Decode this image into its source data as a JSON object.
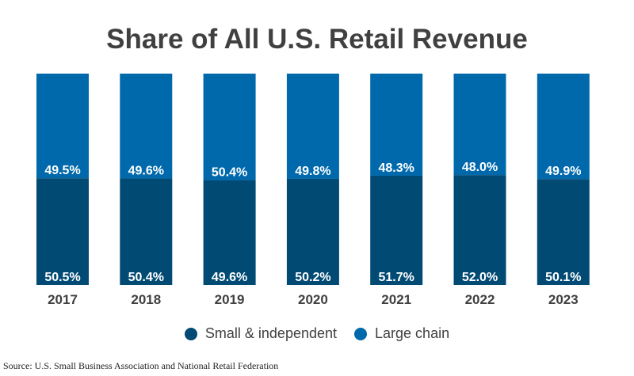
{
  "chart_data": {
    "type": "bar",
    "stacked": true,
    "title": "Share of All U.S. Retail Revenue",
    "categories": [
      "2017",
      "2018",
      "2019",
      "2020",
      "2021",
      "2022",
      "2023"
    ],
    "series": [
      {
        "name": "Small & independent",
        "color": "#004a74",
        "values": [
          50.5,
          50.4,
          49.6,
          50.2,
          51.7,
          52.0,
          50.1
        ],
        "labels": [
          "50.5%",
          "50.4%",
          "49.6%",
          "50.2%",
          "51.7%",
          "52.0%",
          "50.1%"
        ]
      },
      {
        "name": "Large chain",
        "color": "#0069ab",
        "values": [
          49.5,
          49.6,
          50.4,
          49.8,
          48.3,
          48.0,
          49.9
        ],
        "labels": [
          "49.5%",
          "49.6%",
          "50.4%",
          "49.8%",
          "48.3%",
          "48.0%",
          "49.9%"
        ]
      }
    ],
    "ylim": [
      0,
      100
    ],
    "legend": "bottom",
    "source": "Source: U.S. Small Business Association and National Retail Federation"
  }
}
